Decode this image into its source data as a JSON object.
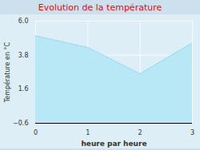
{
  "chart_data": {
    "type": "area",
    "title": "Evolution de la température",
    "xlabel": "heure par heure",
    "ylabel": "Température en °C",
    "x": [
      0,
      1,
      2,
      3
    ],
    "values": [
      5.05,
      4.3,
      2.6,
      4.6
    ],
    "color": "#b8e8f5",
    "line_style": "dotted",
    "xlim": [
      0,
      3
    ],
    "ylim": [
      -0.6,
      6.0
    ],
    "xticks": [
      0,
      1,
      2,
      3
    ],
    "yticks": [
      -0.6,
      1.6,
      3.8,
      {
        "value": 6.0,
        "label": "6.0"
      }
    ],
    "grid": true
  }
}
